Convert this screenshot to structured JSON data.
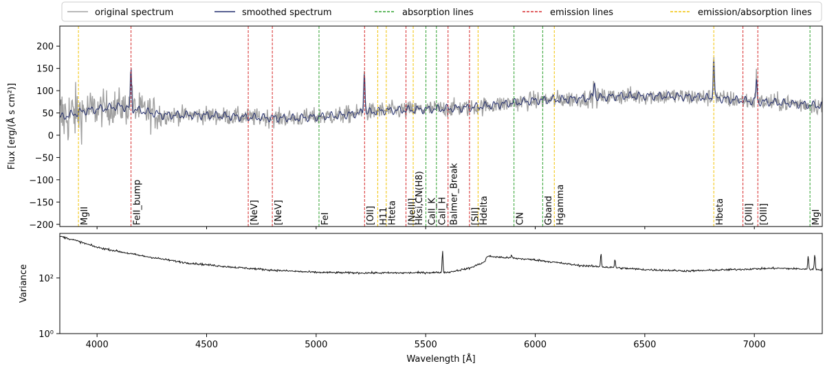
{
  "chart_data": {
    "type": "line",
    "legend": {
      "placement": "top",
      "entries": [
        {
          "name": "original spectrum",
          "color": "#a0a0a0",
          "style": "solid"
        },
        {
          "name": "smoothed spectrum",
          "color": "#1f2a6b",
          "style": "solid"
        },
        {
          "name": "absorption lines",
          "color": "#2ca02c",
          "style": "dashed"
        },
        {
          "name": "emission lines",
          "color": "#d62728",
          "style": "dashed"
        },
        {
          "name": "emission/absorption lines",
          "color": "#f2c200",
          "style": "dashed"
        }
      ]
    },
    "xlabel": "Wavelength [Å]",
    "xlim": [
      3830,
      7310
    ],
    "xticks": [
      4000,
      4500,
      5000,
      5500,
      6000,
      6500,
      7000
    ],
    "top_panel": {
      "ylabel": "Flux [erg/(Å s cm²)]",
      "ylim": [
        -205,
        245
      ],
      "yticks": [
        -200,
        -150,
        -100,
        -50,
        0,
        50,
        100,
        150,
        200
      ],
      "continuum": [
        [
          3830,
          40
        ],
        [
          3950,
          55
        ],
        [
          4100,
          65
        ],
        [
          4300,
          45
        ],
        [
          4500,
          45
        ],
        [
          4700,
          40
        ],
        [
          4900,
          38
        ],
        [
          5100,
          44
        ],
        [
          5300,
          55
        ],
        [
          5500,
          58
        ],
        [
          5700,
          62
        ],
        [
          5850,
          70
        ],
        [
          6000,
          78
        ],
        [
          6200,
          82
        ],
        [
          6400,
          88
        ],
        [
          6600,
          88
        ],
        [
          6800,
          84
        ],
        [
          7000,
          76
        ],
        [
          7150,
          72
        ],
        [
          7310,
          66
        ]
      ],
      "peaks": [
        {
          "x": 4155,
          "value": 165
        },
        {
          "x": 5220,
          "value": 160
        },
        {
          "x": 6815,
          "value": 188
        },
        {
          "x": 7010,
          "value": 135
        },
        {
          "x": 6270,
          "value": 130
        }
      ]
    },
    "bottom_panel": {
      "ylabel": "Variance",
      "scale": "log",
      "ylim_log10": [
        0,
        3.6
      ],
      "yticks": [
        "10⁰",
        "10²"
      ],
      "yticks_log10": [
        0,
        2
      ],
      "continuum": [
        [
          3830,
          3.5
        ],
        [
          3900,
          3.35
        ],
        [
          4000,
          3.1
        ],
        [
          4200,
          2.8
        ],
        [
          4400,
          2.55
        ],
        [
          4600,
          2.4
        ],
        [
          4800,
          2.28
        ],
        [
          5000,
          2.2
        ],
        [
          5200,
          2.18
        ],
        [
          5400,
          2.18
        ],
        [
          5600,
          2.2
        ],
        [
          5700,
          2.35
        ],
        [
          5770,
          2.58
        ],
        [
          5780,
          2.78
        ],
        [
          6000,
          2.65
        ],
        [
          6200,
          2.45
        ],
        [
          6500,
          2.3
        ],
        [
          6700,
          2.25
        ],
        [
          6900,
          2.3
        ],
        [
          7100,
          2.35
        ],
        [
          7310,
          2.3
        ]
      ],
      "peaks": [
        {
          "x": 5577,
          "value": 2.95
        },
        {
          "x": 5892,
          "value": 2.82
        },
        {
          "x": 6300,
          "value": 2.9
        },
        {
          "x": 6364,
          "value": 2.68
        },
        {
          "x": 7246,
          "value": 2.78
        },
        {
          "x": 7276,
          "value": 2.86
        }
      ]
    },
    "spectral_lines": [
      {
        "name": "MgII",
        "x": 3915,
        "kind": "emission/absorption"
      },
      {
        "name": "FeII_bump",
        "x": 4155,
        "kind": "emission"
      },
      {
        "name": "[NeV]",
        "x": 4690,
        "kind": "emission"
      },
      {
        "name": "[NeV]",
        "x": 4800,
        "kind": "emission"
      },
      {
        "name": "FeI",
        "x": 5013,
        "kind": "absorption"
      },
      {
        "name": "[OII]",
        "x": 5221,
        "kind": "emission"
      },
      {
        "name": "H11",
        "x": 5281,
        "kind": "emission/absorption"
      },
      {
        "name": "Hteta",
        "x": 5320,
        "kind": "emission/absorption"
      },
      {
        "name": "[NeIII]",
        "x": 5410,
        "kind": "emission"
      },
      {
        "name": "Hksi,CN(H8)",
        "x": 5443,
        "kind": "emission/absorption"
      },
      {
        "name": "CaII_K",
        "x": 5501,
        "kind": "absorption"
      },
      {
        "name": "CaII_H",
        "x": 5549,
        "kind": "absorption"
      },
      {
        "name": "Balmer_Break",
        "x": 5602,
        "kind": "emission"
      },
      {
        "name": "[SII]",
        "x": 5700,
        "kind": "emission"
      },
      {
        "name": "Hdelta",
        "x": 5739,
        "kind": "emission/absorption"
      },
      {
        "name": "CN",
        "x": 5903,
        "kind": "absorption"
      },
      {
        "name": "Gband",
        "x": 6034,
        "kind": "absorption"
      },
      {
        "name": "Hgamma",
        "x": 6087,
        "kind": "emission/absorption"
      },
      {
        "name": "Hbeta",
        "x": 6815,
        "kind": "emission/absorption"
      },
      {
        "name": "[OIII]",
        "x": 6948,
        "kind": "emission"
      },
      {
        "name": "[OIII]",
        "x": 7016,
        "kind": "emission"
      },
      {
        "name": "MgI",
        "x": 7254,
        "kind": "absorption"
      }
    ]
  }
}
